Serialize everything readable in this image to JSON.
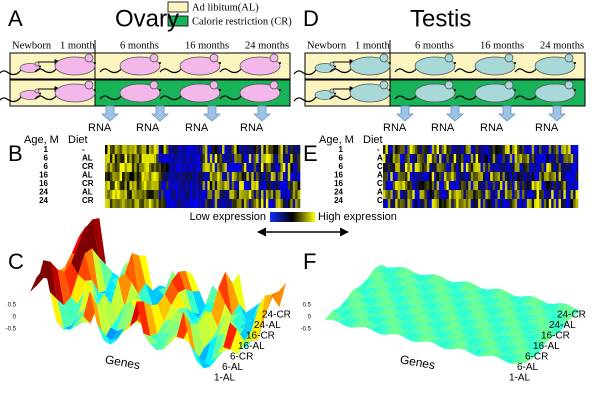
{
  "left": {
    "label_top": "A",
    "title": "Ovary",
    "label_heatmap": "B",
    "label_surface": "C"
  },
  "right": {
    "label_top": "D",
    "title": "Testis",
    "label_heatmap": "E",
    "label_surface": "F"
  },
  "legend": [
    "Ad libitum(AL)",
    "Calorie restriction (CR)"
  ],
  "timeline": [
    "Newborn",
    "1 month",
    "6 months",
    "16 months",
    "24 months"
  ],
  "rna_label": "RNA",
  "heatmap": {
    "header": [
      "Age, M",
      "Diet"
    ],
    "rows": [
      [
        "1",
        "-"
      ],
      [
        "6",
        "AL"
      ],
      [
        "6",
        "CR"
      ],
      [
        "16",
        "AL"
      ],
      [
        "16",
        "CR"
      ],
      [
        "24",
        "AL"
      ],
      [
        "24",
        "CR"
      ]
    ]
  },
  "colorbar": [
    "Low expression",
    "High expression"
  ],
  "surface": {
    "genes_label": "Genes",
    "z_ticks": [
      "0.5",
      "0",
      "-0.5"
    ],
    "samples": [
      "24-CR",
      "24-AL",
      "16-CR",
      "16-AL",
      "6-CR",
      "6-AL",
      "1-AL"
    ]
  }
}
